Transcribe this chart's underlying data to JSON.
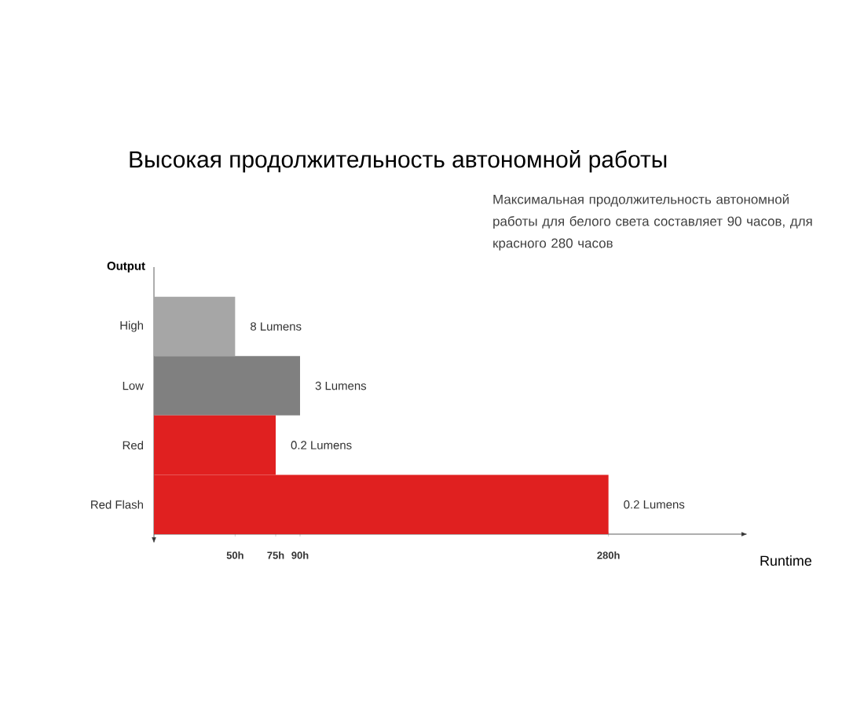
{
  "chart_data": {
    "type": "bar",
    "orientation": "horizontal",
    "title": "Высокая продолжительность автономной работы",
    "subtitle": "Максимальная продолжительность автономной работы для белого света составляет 90 часов, для красного 280 часов",
    "xlabel": "Runtime",
    "ylabel": "Output",
    "categories": [
      "High",
      "Low",
      "Red",
      "Red Flash"
    ],
    "values": [
      50,
      90,
      75,
      280
    ],
    "colors": [
      "#a6a6a6",
      "#808080",
      "#e02020",
      "#e02020"
    ],
    "xlim": [
      0,
      360
    ],
    "xticks": [
      {
        "value": 50,
        "label": "50h"
      },
      {
        "value": 75,
        "label": "75h"
      },
      {
        "value": 90,
        "label": "90h"
      },
      {
        "value": 280,
        "label": "280h"
      }
    ],
    "annotations": [
      {
        "text": "8 Lumens",
        "x": 50,
        "y": "High"
      },
      {
        "text": "3 Lumens",
        "x": 90,
        "y": "Low"
      },
      {
        "text": "0.2 Lumens",
        "x": 75,
        "y": "Red"
      },
      {
        "text": "0.2 Lumens",
        "x": 280,
        "y": "Red Flash"
      }
    ],
    "grid": false
  }
}
